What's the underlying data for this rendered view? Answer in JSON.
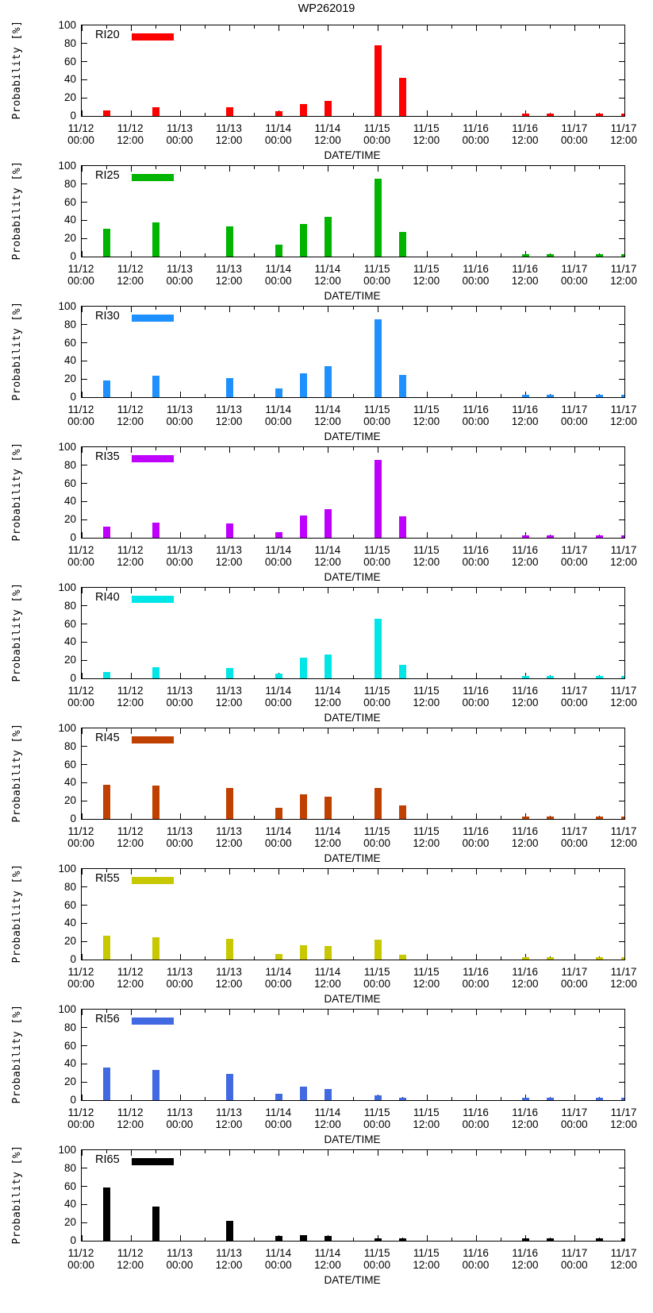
{
  "figure": {
    "title": "WP262019"
  },
  "chart_data": {
    "type": "bar",
    "title": "WP262019",
    "xlabel": "DATE/TIME",
    "ylabel": "Probability [%]",
    "ylim": [
      0,
      100
    ],
    "yticks": [
      100,
      80,
      60,
      40,
      20,
      0
    ],
    "x_axis_hours_span": [
      0,
      132
    ],
    "xtick_hours": [
      0,
      12,
      24,
      36,
      48,
      60,
      72,
      84,
      96,
      108,
      120,
      132
    ],
    "xtick_labels": [
      [
        "11/12",
        "00:00"
      ],
      [
        "11/12",
        "12:00"
      ],
      [
        "11/13",
        "00:00"
      ],
      [
        "11/13",
        "12:00"
      ],
      [
        "11/14",
        "00:00"
      ],
      [
        "11/14",
        "12:00"
      ],
      [
        "11/15",
        "00:00"
      ],
      [
        "11/15",
        "12:00"
      ],
      [
        "11/16",
        "00:00"
      ],
      [
        "11/16",
        "12:00"
      ],
      [
        "11/17",
        "00:00"
      ],
      [
        "11/17",
        "12:00"
      ]
    ],
    "bar_hours": [
      6,
      18,
      36,
      48,
      54,
      60,
      72,
      78,
      108,
      114,
      126,
      132
    ],
    "bar_times": [
      "11/12 06:00",
      "11/12 18:00",
      "11/13 12:00",
      "11/14 00:00",
      "11/14 06:00",
      "11/14 12:00",
      "11/15 00:00",
      "11/15 06:00",
      "11/16 12:00",
      "11/16 18:00",
      "11/17 06:00",
      "11/17 12:00"
    ],
    "legend_position": "top-left-inside",
    "grid": false,
    "series": [
      {
        "name": "RI20",
        "color": "#ff0000",
        "values": [
          6,
          10,
          10,
          5,
          13,
          17,
          78,
          42,
          3,
          3,
          3,
          3
        ]
      },
      {
        "name": "RI25",
        "color": "#00b400",
        "values": [
          31,
          38,
          33,
          13,
          36,
          44,
          86,
          27,
          3,
          3,
          3,
          3
        ]
      },
      {
        "name": "RI30",
        "color": "#1e90ff",
        "values": [
          18,
          24,
          21,
          10,
          26,
          34,
          86,
          25,
          3,
          3,
          3,
          3
        ]
      },
      {
        "name": "RI35",
        "color": "#bf00ff",
        "values": [
          12,
          17,
          16,
          6,
          25,
          32,
          86,
          24,
          3,
          3,
          3,
          3
        ]
      },
      {
        "name": "RI40",
        "color": "#00e6e6",
        "values": [
          7,
          12,
          11,
          5,
          23,
          26,
          66,
          15,
          3,
          3,
          3,
          3
        ]
      },
      {
        "name": "RI45",
        "color": "#c04000",
        "values": [
          38,
          37,
          34,
          12,
          27,
          25,
          34,
          15,
          3,
          3,
          3,
          3
        ]
      },
      {
        "name": "RI55",
        "color": "#c8c800",
        "values": [
          26,
          25,
          23,
          6,
          16,
          15,
          22,
          5,
          3,
          3,
          3,
          3
        ]
      },
      {
        "name": "RI56",
        "color": "#4169e1",
        "values": [
          36,
          33,
          29,
          7,
          15,
          12,
          5,
          3,
          3,
          3,
          3,
          3
        ]
      },
      {
        "name": "RI65",
        "color": "#000000",
        "values": [
          59,
          38,
          22,
          5,
          6,
          5,
          3,
          3,
          3,
          3,
          3,
          3
        ]
      }
    ]
  }
}
